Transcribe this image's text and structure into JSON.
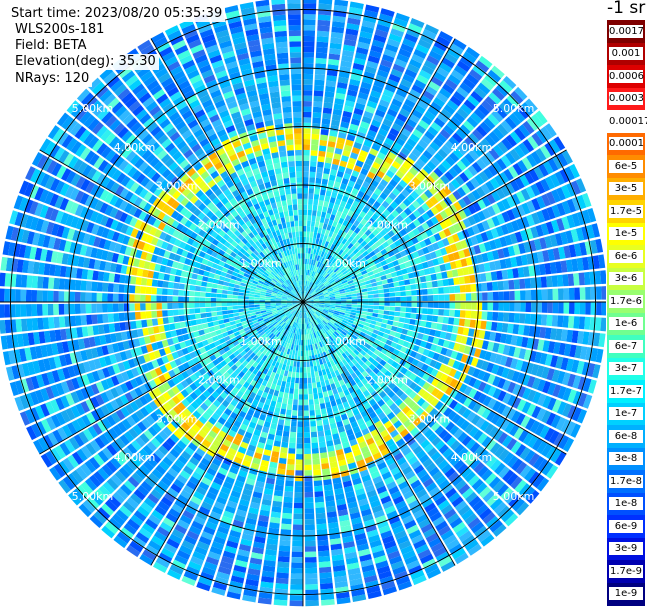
{
  "info": {
    "start_time": "Start time: 2023/08/20 05:35:39",
    "instrument": "WLS200s-181",
    "field": "Field: BETA",
    "elevation": "Elevation(deg): 35.30",
    "nrays": "NRays: 120"
  },
  "colorbar": {
    "unit_title": "-1 sr",
    "labels": [
      "0.0017",
      "0.001",
      "0.0006",
      "0.0003",
      "0.00017",
      "0.0001",
      "6e-5",
      "3e-5",
      "1.7e-5",
      "1e-5",
      "6e-6",
      "3e-6",
      "1.7e-6",
      "1e-6",
      "6e-7",
      "3e-7",
      "1.7e-7",
      "1e-7",
      "6e-8",
      "3e-8",
      "1.7e-8",
      "1e-8",
      "6e-9",
      "3e-9",
      "1.7e-9",
      "1e-9"
    ],
    "colors": [
      "#7f0000",
      "#b00000",
      "#dd0000",
      "#ff1a1a",
      "#ffffff",
      "#ff6a00",
      "#ff8c00",
      "#ffae00",
      "#ffd400",
      "#ffff00",
      "#e8ff20",
      "#c8ff40",
      "#98ff70",
      "#70ff90",
      "#40ffc0",
      "#20ffe8",
      "#00f0ff",
      "#00d0ff",
      "#00b0ff",
      "#0090ff",
      "#0070ff",
      "#0050ff",
      "#0030ff",
      "#0010e0",
      "#0000b0",
      "#000080"
    ]
  },
  "chart_data": {
    "type": "ppi",
    "field": "BETA",
    "elevation_deg": 35.3,
    "nrays": 120,
    "range_unit": "km",
    "ring_ranges_km": [
      1,
      2,
      3,
      4,
      5
    ],
    "ring_labels": [
      "1.00km",
      "2.00km",
      "3.00km",
      "4.00km",
      "5.00km"
    ],
    "max_range_km": 5.2,
    "aerosol_ring_km": [
      2.55,
      3.0
    ],
    "aerosol_ring_value": "1e-5",
    "background_value": "1e-7",
    "scale": "log"
  }
}
